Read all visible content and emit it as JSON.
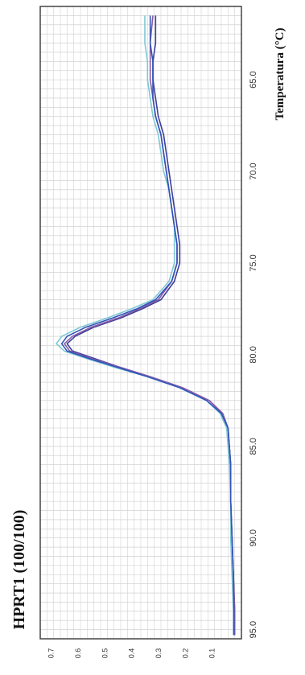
{
  "chart_data": {
    "type": "line",
    "title": "HPRT1 (100/100)",
    "xlabel": "Temperatura (°C)",
    "ylabel": "",
    "xlim": [
      61,
      95.5
    ],
    "ylim": [
      0,
      0.75
    ],
    "x_ticks": [
      65.0,
      70.0,
      75.0,
      80.0,
      85.0,
      90.0,
      95.0
    ],
    "x_tick_labels": [
      "65.0",
      "70.0",
      "75.0",
      "80.0",
      "85.0",
      "90.0",
      "95.0"
    ],
    "y_ticks": [
      0.1,
      0.2,
      0.3,
      0.4,
      0.5,
      0.6,
      0.7
    ],
    "y_tick_labels": [
      "0.1",
      "0.2",
      "0.3",
      "0.4",
      "0.5",
      "0.6",
      "0.7"
    ],
    "grid": true,
    "series": [
      {
        "color": "#3b3f9a",
        "points": [
          [
            61.5,
            0.32
          ],
          [
            63,
            0.32
          ],
          [
            64,
            0.33
          ],
          [
            65,
            0.33
          ],
          [
            66,
            0.32
          ],
          [
            67,
            0.31
          ],
          [
            68,
            0.29
          ],
          [
            69,
            0.28
          ],
          [
            70,
            0.27
          ],
          [
            71,
            0.26
          ],
          [
            72,
            0.25
          ],
          [
            73,
            0.24
          ],
          [
            74,
            0.23
          ],
          [
            75,
            0.23
          ],
          [
            76,
            0.25
          ],
          [
            77,
            0.3
          ],
          [
            77.5,
            0.37
          ],
          [
            78,
            0.45
          ],
          [
            78.5,
            0.55
          ],
          [
            79,
            0.62
          ],
          [
            79.4,
            0.65
          ],
          [
            79.8,
            0.63
          ],
          [
            80.2,
            0.55
          ],
          [
            80.7,
            0.45
          ],
          [
            81.2,
            0.34
          ],
          [
            81.8,
            0.22
          ],
          [
            82.5,
            0.12
          ],
          [
            83.2,
            0.07
          ],
          [
            84,
            0.05
          ],
          [
            86,
            0.04
          ],
          [
            88,
            0.04
          ],
          [
            90,
            0.035
          ],
          [
            92,
            0.03
          ],
          [
            94,
            0.025
          ],
          [
            95.3,
            0.025
          ]
        ]
      },
      {
        "color": "#8a5aa8",
        "points": [
          [
            61.5,
            0.33
          ],
          [
            63,
            0.34
          ],
          [
            64,
            0.34
          ],
          [
            65,
            0.34
          ],
          [
            66,
            0.33
          ],
          [
            67,
            0.32
          ],
          [
            68,
            0.3
          ],
          [
            69,
            0.29
          ],
          [
            70,
            0.28
          ],
          [
            71,
            0.27
          ],
          [
            72,
            0.26
          ],
          [
            73,
            0.25
          ],
          [
            74,
            0.24
          ],
          [
            75,
            0.24
          ],
          [
            76,
            0.26
          ],
          [
            77,
            0.31
          ],
          [
            77.5,
            0.38
          ],
          [
            78,
            0.46
          ],
          [
            78.5,
            0.56
          ],
          [
            79,
            0.63
          ],
          [
            79.4,
            0.66
          ],
          [
            79.8,
            0.64
          ],
          [
            80.2,
            0.56
          ],
          [
            80.7,
            0.45
          ],
          [
            81.2,
            0.34
          ],
          [
            81.8,
            0.22
          ],
          [
            82.5,
            0.12
          ],
          [
            83.2,
            0.07
          ],
          [
            84,
            0.05
          ],
          [
            86,
            0.04
          ],
          [
            88,
            0.04
          ],
          [
            90,
            0.035
          ],
          [
            92,
            0.03
          ],
          [
            94,
            0.025
          ],
          [
            95.3,
            0.025
          ]
        ]
      },
      {
        "color": "#7fc7d6",
        "points": [
          [
            61.5,
            0.36
          ],
          [
            63,
            0.36
          ],
          [
            64,
            0.35
          ],
          [
            65,
            0.35
          ],
          [
            66,
            0.34
          ],
          [
            67,
            0.33
          ],
          [
            68,
            0.31
          ],
          [
            69,
            0.3
          ],
          [
            70,
            0.29
          ],
          [
            71,
            0.27
          ],
          [
            72,
            0.26
          ],
          [
            73,
            0.25
          ],
          [
            74,
            0.25
          ],
          [
            75,
            0.25
          ],
          [
            76,
            0.27
          ],
          [
            77,
            0.33
          ],
          [
            77.5,
            0.41
          ],
          [
            78,
            0.5
          ],
          [
            78.5,
            0.6
          ],
          [
            79,
            0.67
          ],
          [
            79.4,
            0.69
          ],
          [
            79.8,
            0.66
          ],
          [
            80.2,
            0.58
          ],
          [
            80.7,
            0.47
          ],
          [
            81.2,
            0.35
          ],
          [
            81.8,
            0.23
          ],
          [
            82.5,
            0.13
          ],
          [
            83.2,
            0.08
          ],
          [
            84,
            0.055
          ],
          [
            86,
            0.045
          ],
          [
            88,
            0.04
          ],
          [
            90,
            0.04
          ],
          [
            92,
            0.035
          ],
          [
            94,
            0.03
          ],
          [
            95.3,
            0.03
          ]
        ]
      },
      {
        "color": "#2e55b8",
        "points": [
          [
            61.5,
            0.34
          ],
          [
            63,
            0.34
          ],
          [
            64,
            0.33
          ],
          [
            65,
            0.33
          ],
          [
            66,
            0.33
          ],
          [
            67,
            0.32
          ],
          [
            68,
            0.3
          ],
          [
            69,
            0.29
          ],
          [
            70,
            0.28
          ],
          [
            71,
            0.27
          ],
          [
            72,
            0.26
          ],
          [
            73,
            0.25
          ],
          [
            74,
            0.24
          ],
          [
            75,
            0.24
          ],
          [
            76,
            0.26
          ],
          [
            77,
            0.32
          ],
          [
            77.5,
            0.39
          ],
          [
            78,
            0.48
          ],
          [
            78.5,
            0.58
          ],
          [
            79,
            0.65
          ],
          [
            79.4,
            0.67
          ],
          [
            79.8,
            0.65
          ],
          [
            80.2,
            0.57
          ],
          [
            80.7,
            0.46
          ],
          [
            81.2,
            0.35
          ],
          [
            81.8,
            0.23
          ],
          [
            82.5,
            0.13
          ],
          [
            83.2,
            0.075
          ],
          [
            84,
            0.05
          ],
          [
            86,
            0.04
          ],
          [
            88,
            0.04
          ],
          [
            90,
            0.035
          ],
          [
            92,
            0.03
          ],
          [
            94,
            0.028
          ],
          [
            95.3,
            0.028
          ]
        ]
      }
    ]
  }
}
